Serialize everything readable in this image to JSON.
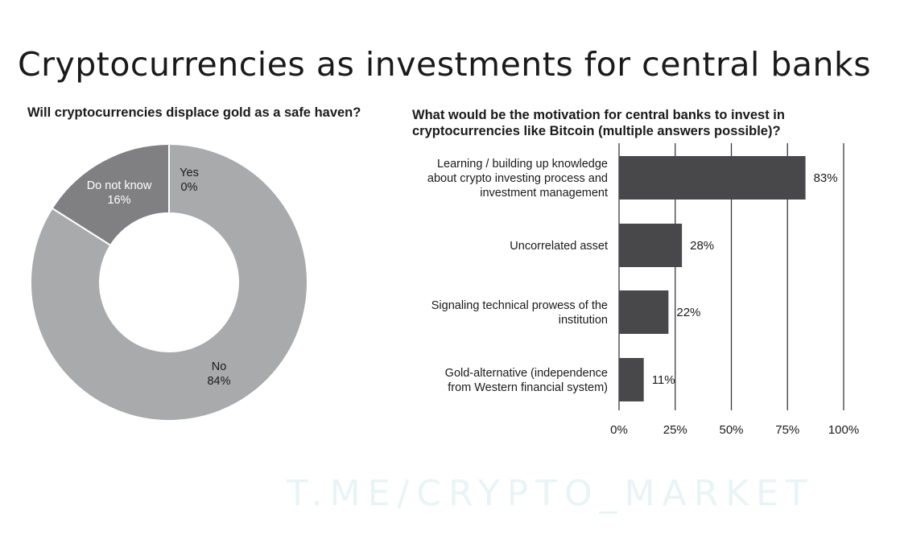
{
  "page_title": "Cryptocurrencies as investments for central banks",
  "watermark": "T.ME/CRYPTO_MARKET",
  "chart_data": [
    {
      "type": "pie",
      "variant": "donut",
      "title": "Will cryptocurrencies displace gold as a safe haven?",
      "slices": [
        {
          "label": "Yes",
          "value_label": "0%",
          "value": 0,
          "color": "#6e6e70"
        },
        {
          "label": "No",
          "value_label": "84%",
          "value": 84,
          "color": "#a9aaac"
        },
        {
          "label": "Do not know",
          "value_label": "16%",
          "value": 16,
          "color": "#808082"
        }
      ]
    },
    {
      "type": "bar",
      "orientation": "horizontal",
      "title": "What would be the motivation for central banks to invest in cryptocurrencies like Bitcoin (multiple answers possible)?",
      "categories": [
        [
          "Learning / building up knowledge",
          "about crypto investing process and",
          "investment management"
        ],
        [
          "Uncorrelated asset"
        ],
        [
          "Signaling technical prowess of the",
          "institution"
        ],
        [
          "Gold-alternative (independence",
          "from Western financial system)"
        ]
      ],
      "values": [
        83,
        28,
        22,
        11
      ],
      "value_labels": [
        "83%",
        "28%",
        "22%",
        "11%"
      ],
      "xlim": [
        0,
        100
      ],
      "xticks": [
        0,
        25,
        50,
        75,
        100
      ],
      "xtick_labels": [
        "0%",
        "25%",
        "50%",
        "75%",
        "100%"
      ],
      "grid": true,
      "bar_color": "#48484a"
    }
  ]
}
